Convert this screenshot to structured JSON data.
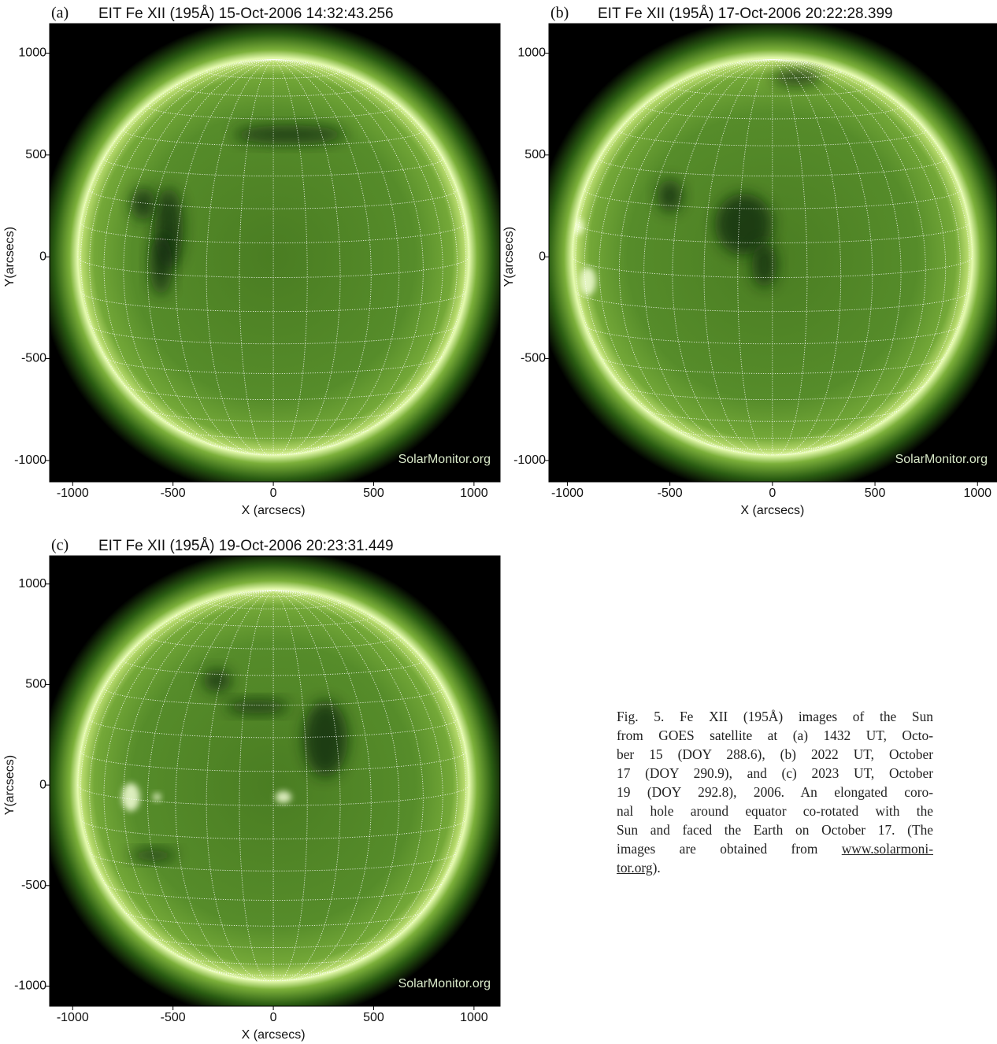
{
  "chart_data": [
    {
      "type": "image",
      "panel_label": "(a)",
      "title": "EIT Fe XII (195Å) 15-Oct-2006 14:32:43.256",
      "xlabel": "X (arcsecs)",
      "ylabel": "Y(arcsecs)",
      "watermark": "SolarMonitor.org",
      "xlim": [
        -1115,
        1130
      ],
      "ylim": [
        -1105,
        1145
      ],
      "xticks": [
        -1000,
        -500,
        0,
        500,
        1000
      ],
      "yticks": [
        -1000,
        -500,
        0,
        500,
        1000
      ]
    },
    {
      "type": "image",
      "panel_label": "(b)",
      "title": "EIT Fe XII (195Å) 17-Oct-2006 20:22:28.399",
      "xlabel": "X (arcsecs)",
      "ylabel": "Y(arcsecs)",
      "watermark": "SolarMonitor.org",
      "xlim": [
        -1090,
        1095
      ],
      "ylim": [
        -1105,
        1145
      ],
      "xticks": [
        -1000,
        -500,
        0,
        500,
        1000
      ],
      "yticks": [
        -1000,
        -500,
        0,
        500,
        1000
      ]
    },
    {
      "type": "image",
      "panel_label": "(c)",
      "title": "EIT Fe XII (195Å) 19-Oct-2006 20:23:31.449",
      "xlabel": "X (arcsecs)",
      "ylabel": "Y(arcsecs)",
      "watermark": "SolarMonitor.org",
      "xlim": [
        -1115,
        1130
      ],
      "ylim": [
        -1100,
        1140
      ],
      "xticks": [
        -1000,
        -500,
        0,
        500,
        1000
      ],
      "yticks": [
        -1000,
        -500,
        0,
        500,
        1000
      ]
    }
  ],
  "caption": {
    "lines": [
      [
        {
          "text": "Fig. 5. Fe XII (195Å) images of the Sun"
        }
      ],
      [
        {
          "text": "from GOES satellite at (a) 1432 UT, Octo-"
        }
      ],
      [
        {
          "text": "ber 15 (DOY 288.6), (b) 2022 UT, October"
        }
      ],
      [
        {
          "text": "17 (DOY 290.9), and (c) 2023 UT, October"
        }
      ],
      [
        {
          "text": "19 (DOY 292.8), 2006. An elongated coro-"
        }
      ],
      [
        {
          "text": "nal hole around equator co-rotated with the"
        }
      ],
      [
        {
          "text": "Sun and faced the Earth on October 17. (The"
        }
      ],
      [
        {
          "text": "images are obtained from "
        },
        {
          "text": "www.solarmoni-",
          "underline": true
        }
      ],
      [
        {
          "text": "tor.org",
          "underline": true
        },
        {
          "text": ")."
        }
      ]
    ]
  }
}
